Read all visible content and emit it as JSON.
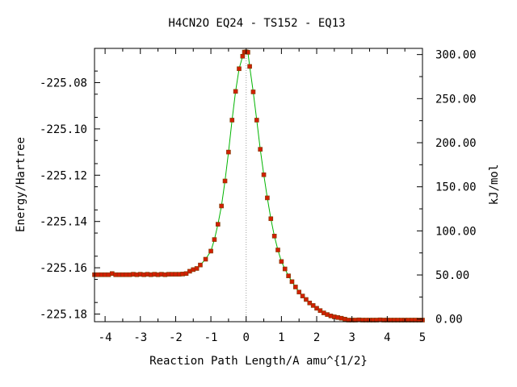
{
  "chart_data": {
    "type": "line",
    "title": "H4CN2O   EQ24 - TS152 - EQ13",
    "xlabel": "Reaction Path Length/A amu^{1/2}",
    "ylabel_left": "Energy/Hartree",
    "ylabel_right": "kJ/mol",
    "xlim": [
      -4.3,
      5.0
    ],
    "ylim_left": [
      -225.1833,
      -225.0652
    ],
    "ylim_right": [
      -3.0,
      307.0
    ],
    "x_ticks": [
      -4,
      -3,
      -2,
      -1,
      0,
      1,
      2,
      3,
      4,
      5
    ],
    "x_tick_labels": [
      "-4",
      "-3",
      "-2",
      "-1",
      "0",
      "1",
      "2",
      "3",
      "4",
      "5"
    ],
    "y_left_ticks": [
      -225.08,
      -225.1,
      -225.12,
      -225.14,
      -225.16,
      -225.18
    ],
    "y_left_tick_labels": [
      "-225.08",
      "-225.10",
      "-225.12",
      "-225.14",
      "-225.16",
      "-225.18"
    ],
    "y_right_ticks": [
      0,
      50,
      100,
      150,
      200,
      250,
      300
    ],
    "y_right_tick_labels": [
      "0.00",
      "50.00",
      "100.00",
      "150.00",
      "200.00",
      "250.00",
      "300.00"
    ],
    "ts_line_x": 0,
    "colors": {
      "curve": "#00b400",
      "points": "#d22000",
      "point_edge": "#7a3a00",
      "ts_line": "#a0a0a0"
    },
    "series": [
      {
        "x": [
          -4.3,
          -4.2,
          -4.1,
          -4.0,
          -3.9,
          -3.8,
          -3.7,
          -3.6,
          -3.5,
          -3.4,
          -3.3,
          -3.2,
          -3.1,
          -3.0,
          -2.9,
          -2.8,
          -2.7,
          -2.6,
          -2.5,
          -2.4,
          -2.3,
          -2.2,
          -2.1,
          -2.0,
          -1.9,
          -1.8,
          -1.7,
          -1.6,
          -1.5,
          -1.4,
          -1.3,
          -1.15,
          -1.0,
          -0.9,
          -0.8,
          -0.7,
          -0.6,
          -0.5,
          -0.4,
          -0.3,
          -0.2,
          -0.1,
          -0.05,
          0.0,
          0.05,
          0.1,
          0.2,
          0.3,
          0.4,
          0.5,
          0.6,
          0.7,
          0.8,
          0.9,
          1.0,
          1.1,
          1.2,
          1.3,
          1.4,
          1.5,
          1.6,
          1.7,
          1.8,
          1.9,
          2.0,
          2.1,
          2.2,
          2.3,
          2.4,
          2.5,
          2.6,
          2.7,
          2.8,
          2.9,
          3.0,
          3.1,
          3.2,
          3.3,
          3.4,
          3.5,
          3.6,
          3.7,
          3.8,
          3.9,
          4.0,
          4.1,
          4.2,
          4.3,
          4.4,
          4.5,
          4.6,
          4.7,
          4.8,
          4.9,
          5.0
        ],
        "y": [
          -225.163,
          -225.163,
          -225.163,
          -225.163,
          -225.163,
          -225.1625,
          -225.163,
          -225.163,
          -225.163,
          -225.163,
          -225.163,
          -225.1628,
          -225.163,
          -225.1628,
          -225.163,
          -225.1628,
          -225.163,
          -225.1628,
          -225.163,
          -225.1628,
          -225.163,
          -225.1628,
          -225.1628,
          -225.1628,
          -225.1628,
          -225.1627,
          -225.1625,
          -225.1615,
          -225.1608,
          -225.1603,
          -225.1588,
          -225.1563,
          -225.1528,
          -225.1478,
          -225.1412,
          -225.1333,
          -225.1225,
          -225.11,
          -225.0962,
          -225.0838,
          -225.074,
          -225.0686,
          -225.0668,
          -225.0667,
          -225.0669,
          -225.073,
          -225.084,
          -225.0962,
          -225.1088,
          -225.1198,
          -225.1298,
          -225.1388,
          -225.1463,
          -225.1523,
          -225.1573,
          -225.1605,
          -225.1635,
          -225.166,
          -225.1683,
          -225.1705,
          -225.1722,
          -225.1737,
          -225.1752,
          -225.1763,
          -225.1775,
          -225.1785,
          -225.1795,
          -225.1802,
          -225.1808,
          -225.1812,
          -225.1815,
          -225.1818,
          -225.1822,
          -225.1826,
          -225.1826,
          -225.1826,
          -225.1825,
          -225.1826,
          -225.1826,
          -225.1826,
          -225.1826,
          -225.1826,
          -225.1825,
          -225.1826,
          -225.1826,
          -225.1826,
          -225.1826,
          -225.1826,
          -225.1826,
          -225.1826,
          -225.1826,
          -225.1826,
          -225.1826,
          -225.1826,
          -225.1826
        ]
      }
    ]
  }
}
